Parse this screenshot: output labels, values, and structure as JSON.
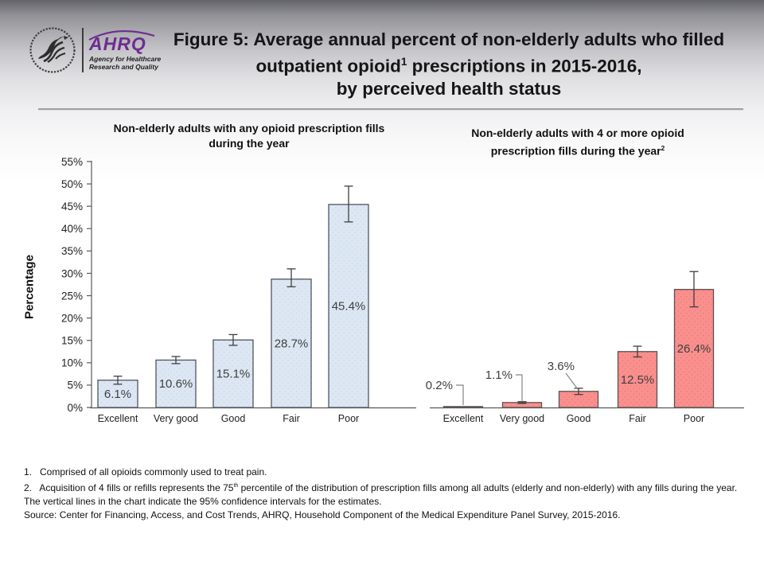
{
  "page": {
    "title_line1": "Figure 5: Average annual percent of non-elderly adults who filled",
    "title_line2_pre": "outpatient opioid",
    "title_line2_sup": "1",
    "title_line2_post": " prescriptions in 2015-2016,",
    "title_line3": "by perceived health status"
  },
  "logo": {
    "org": "AHRQ",
    "tagline_line1": "Agency for Healthcare",
    "tagline_line2": "Research and Quality",
    "brand_color": "#6d2d90"
  },
  "chart_data": [
    {
      "type": "bar",
      "title": "Non-elderly adults with any opioid prescription fills during the year",
      "title_sup": "",
      "categories": [
        "Excellent",
        "Very good",
        "Good",
        "Fair",
        "Poor"
      ],
      "values": [
        6.1,
        10.6,
        15.1,
        28.7,
        45.4
      ],
      "labels": [
        "6.1%",
        "10.6%",
        "15.1%",
        "28.7%",
        "45.4%"
      ],
      "ci_low": [
        5.2,
        9.8,
        13.9,
        27.0,
        41.5
      ],
      "ci_high": [
        7.0,
        11.4,
        16.3,
        31.0,
        49.5
      ],
      "xlabel": "",
      "ylabel": "Percentage",
      "ylim": [
        0,
        55
      ],
      "ytick_step": 5,
      "ytick_suffix": "%",
      "grid": false,
      "bar_fill": "#dce7f3",
      "bar_dot": "#c4d3e8",
      "bar_border": "#4e5560"
    },
    {
      "type": "bar",
      "title": "Non-elderly adults with 4 or more opioid prescription fills during the year",
      "title_sup": "2",
      "categories": [
        "Excellent",
        "Very good",
        "Good",
        "Fair",
        "Poor"
      ],
      "values": [
        0.2,
        1.1,
        3.6,
        12.5,
        26.4
      ],
      "labels": [
        "0.2%",
        "1.1%",
        "3.6%",
        "12.5%",
        "26.4%"
      ],
      "ci_low": [
        null,
        0.9,
        2.9,
        11.3,
        22.5
      ],
      "ci_high": [
        null,
        1.3,
        4.3,
        13.7,
        30.4
      ],
      "xlabel": "",
      "ylabel": "Percentage",
      "ylim": [
        0,
        55
      ],
      "ytick_step": 5,
      "ytick_suffix": "%",
      "grid": false,
      "bar_fill": "#f9908e",
      "bar_dot": "#ef6e6c",
      "bar_border": "#5d5050"
    }
  ],
  "footnotes": {
    "note1": "1.   Comprised of all opioids commonly used to treat pain.",
    "note2_pre": "2.   Acquisition of 4 fills or refills represents the 75",
    "note2_sup": "th",
    "note2_post": " percentile of the distribution of prescription fills among all adults (elderly and non-elderly) with any fills during the year.",
    "note3": "The vertical lines in the chart indicate the 95% confidence intervals for the estimates.",
    "note4": "Source: Center for Financing, Access, and Cost Trends, AHRQ, Household Component of the Medical Expenditure Panel Survey, 2015-2016."
  }
}
